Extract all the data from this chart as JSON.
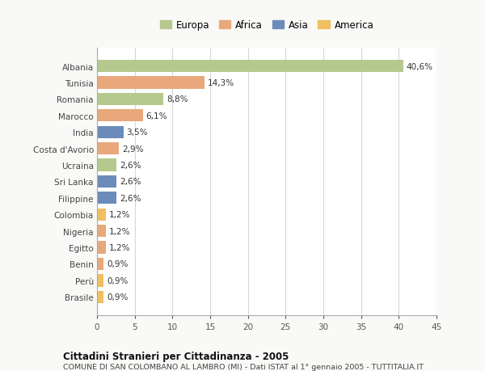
{
  "countries": [
    "Albania",
    "Tunisia",
    "Romania",
    "Marocco",
    "India",
    "Costa d'Avorio",
    "Ucraina",
    "Sri Lanka",
    "Filippine",
    "Colombia",
    "Nigeria",
    "Egitto",
    "Benin",
    "Perù",
    "Brasile"
  ],
  "values": [
    40.6,
    14.3,
    8.8,
    6.1,
    3.5,
    2.9,
    2.6,
    2.6,
    2.6,
    1.2,
    1.2,
    1.2,
    0.9,
    0.9,
    0.9
  ],
  "labels": [
    "40,6%",
    "14,3%",
    "8,8%",
    "6,1%",
    "3,5%",
    "2,9%",
    "2,6%",
    "2,6%",
    "2,6%",
    "1,2%",
    "1,2%",
    "1,2%",
    "0,9%",
    "0,9%",
    "0,9%"
  ],
  "continents": [
    "Europa",
    "Africa",
    "Europa",
    "Africa",
    "Asia",
    "Africa",
    "Europa",
    "Asia",
    "Asia",
    "America",
    "Africa",
    "Africa",
    "Africa",
    "America",
    "America"
  ],
  "colors": {
    "Europa": "#b5c98e",
    "Africa": "#e8a87c",
    "Asia": "#6b8cba",
    "America": "#f0c060"
  },
  "xlim": [
    0,
    45
  ],
  "xticks": [
    0,
    5,
    10,
    15,
    20,
    25,
    30,
    35,
    40,
    45
  ],
  "title": "Cittadini Stranieri per Cittadinanza - 2005",
  "subtitle": "COMUNE DI SAN COLOMBANO AL LAMBRO (MI) - Dati ISTAT al 1° gennaio 2005 - TUTTITALIA.IT",
  "background_color": "#f9f9f7",
  "bar_background": "#ffffff",
  "grid_color": "#d8d8d8",
  "legend_order": [
    "Europa",
    "Africa",
    "Asia",
    "America"
  ]
}
